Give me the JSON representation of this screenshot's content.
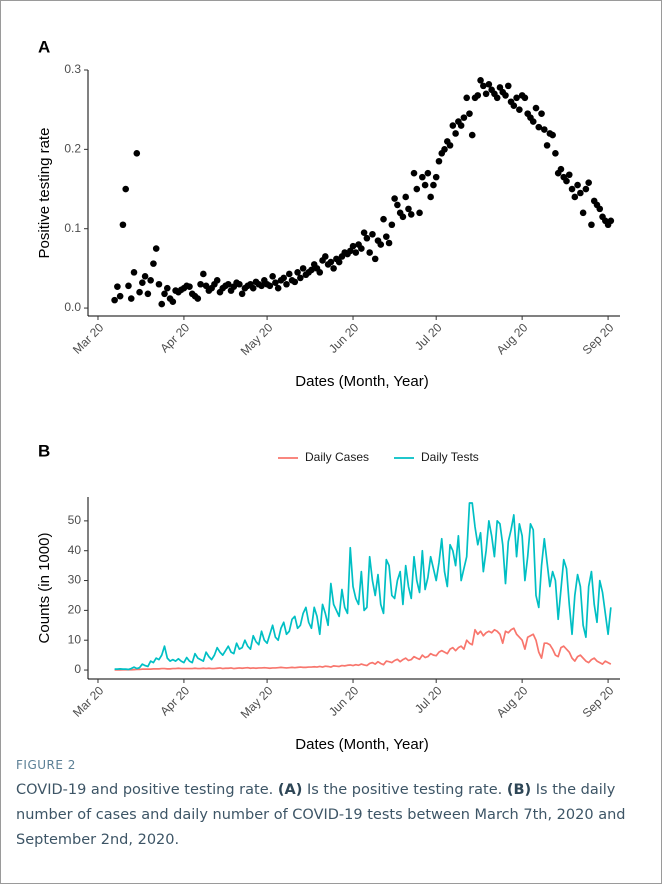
{
  "chart_data": [
    {
      "type": "scatter",
      "panel": "A",
      "y_label": "Positive testing rate",
      "x_label": "Dates (Month, Year)",
      "color": "#000000",
      "x": [
        6,
        7,
        8,
        9,
        10,
        11,
        12,
        13,
        14,
        15,
        16,
        17,
        18,
        19,
        20,
        21,
        22,
        23,
        24,
        25,
        26,
        27,
        28,
        29,
        30,
        31,
        32,
        33,
        34,
        35,
        36,
        37,
        38,
        39,
        40,
        41,
        42,
        43,
        44,
        45,
        46,
        47,
        48,
        49,
        50,
        51,
        52,
        53,
        54,
        55,
        56,
        57,
        58,
        59,
        60,
        61,
        62,
        63,
        64,
        65,
        66,
        67,
        68,
        69,
        70,
        71,
        72,
        73,
        74,
        75,
        76,
        77,
        78,
        79,
        80,
        81,
        82,
        83,
        84,
        85,
        86,
        87,
        88,
        89,
        90,
        91,
        92,
        93,
        94,
        95,
        96,
        97,
        98,
        99,
        100,
        101,
        102,
        103,
        104,
        105,
        106,
        107,
        108,
        109,
        110,
        111,
        112,
        113,
        114,
        115,
        116,
        117,
        118,
        119,
        120,
        121,
        122,
        123,
        124,
        125,
        126,
        127,
        128,
        129,
        130,
        131,
        132,
        133,
        134,
        135,
        136,
        137,
        138,
        139,
        140,
        141,
        142,
        143,
        144,
        145,
        146,
        147,
        148,
        149,
        150,
        151,
        152,
        153,
        154,
        155,
        156,
        157,
        158,
        159,
        160,
        161,
        162,
        163,
        164,
        165,
        166,
        167,
        168,
        169,
        170,
        171,
        172,
        173,
        174,
        175,
        176,
        177,
        178,
        179,
        180,
        181,
        182,
        183,
        184,
        185
      ],
      "values": [
        0.01,
        0.027,
        0.015,
        0.105,
        0.15,
        0.028,
        0.012,
        0.045,
        0.195,
        0.02,
        0.032,
        0.04,
        0.018,
        0.035,
        0.056,
        0.075,
        0.03,
        0.005,
        0.018,
        0.025,
        0.012,
        0.008,
        0.022,
        0.02,
        0.023,
        0.025,
        0.028,
        0.027,
        0.018,
        0.015,
        0.012,
        0.03,
        0.043,
        0.028,
        0.022,
        0.025,
        0.03,
        0.035,
        0.02,
        0.025,
        0.028,
        0.03,
        0.022,
        0.027,
        0.032,
        0.03,
        0.018,
        0.025,
        0.028,
        0.03,
        0.025,
        0.033,
        0.03,
        0.028,
        0.035,
        0.03,
        0.028,
        0.04,
        0.032,
        0.025,
        0.035,
        0.038,
        0.03,
        0.043,
        0.035,
        0.033,
        0.045,
        0.038,
        0.05,
        0.042,
        0.045,
        0.048,
        0.055,
        0.05,
        0.045,
        0.06,
        0.065,
        0.055,
        0.058,
        0.05,
        0.062,
        0.058,
        0.065,
        0.07,
        0.068,
        0.072,
        0.078,
        0.07,
        0.08,
        0.075,
        0.095,
        0.088,
        0.07,
        0.093,
        0.062,
        0.085,
        0.08,
        0.112,
        0.09,
        0.082,
        0.105,
        0.138,
        0.13,
        0.12,
        0.115,
        0.14,
        0.125,
        0.118,
        0.17,
        0.15,
        0.12,
        0.165,
        0.155,
        0.17,
        0.14,
        0.155,
        0.165,
        0.185,
        0.195,
        0.2,
        0.21,
        0.205,
        0.23,
        0.22,
        0.235,
        0.23,
        0.24,
        0.265,
        0.245,
        0.218,
        0.265,
        0.268,
        0.287,
        0.28,
        0.27,
        0.282,
        0.275,
        0.27,
        0.265,
        0.278,
        0.272,
        0.268,
        0.28,
        0.26,
        0.255,
        0.265,
        0.25,
        0.268,
        0.265,
        0.245,
        0.24,
        0.235,
        0.252,
        0.228,
        0.245,
        0.225,
        0.205,
        0.22,
        0.218,
        0.195,
        0.17,
        0.175,
        0.165,
        0.16,
        0.168,
        0.15,
        0.14,
        0.155,
        0.145,
        0.12,
        0.15,
        0.158,
        0.105,
        0.135,
        0.13,
        0.125,
        0.115,
        0.11,
        0.105,
        0.11
      ],
      "xlim": [
        -3.6,
        188.3
      ],
      "xticks": [
        {
          "value": 0,
          "label": "Mar 20"
        },
        {
          "value": 31,
          "label": "Apr 20"
        },
        {
          "value": 61,
          "label": "May 20"
        },
        {
          "value": 92,
          "label": "Jun 20"
        },
        {
          "value": 122,
          "label": "Jul 20"
        },
        {
          "value": 153,
          "label": "Aug 20"
        },
        {
          "value": 184,
          "label": "Sep 20"
        }
      ],
      "ylim": [
        -0.01,
        0.3
      ],
      "yticks": [
        {
          "value": 0,
          "label": "0.0"
        },
        0.1,
        0.2,
        0.3
      ],
      "grid": false
    },
    {
      "type": "line",
      "panel": "B",
      "y_label": "Counts (in 1000)",
      "x_label": "Dates (Month, Year)",
      "legend": "top",
      "x": [
        6,
        7,
        8,
        9,
        10,
        11,
        12,
        13,
        14,
        15,
        16,
        17,
        18,
        19,
        20,
        21,
        22,
        23,
        24,
        25,
        26,
        27,
        28,
        29,
        30,
        31,
        32,
        33,
        34,
        35,
        36,
        37,
        38,
        39,
        40,
        41,
        42,
        43,
        44,
        45,
        46,
        47,
        48,
        49,
        50,
        51,
        52,
        53,
        54,
        55,
        56,
        57,
        58,
        59,
        60,
        61,
        62,
        63,
        64,
        65,
        66,
        67,
        68,
        69,
        70,
        71,
        72,
        73,
        74,
        75,
        76,
        77,
        78,
        79,
        80,
        81,
        82,
        83,
        84,
        85,
        86,
        87,
        88,
        89,
        90,
        91,
        92,
        93,
        94,
        95,
        96,
        97,
        98,
        99,
        100,
        101,
        102,
        103,
        104,
        105,
        106,
        107,
        108,
        109,
        110,
        111,
        112,
        113,
        114,
        115,
        116,
        117,
        118,
        119,
        120,
        121,
        122,
        123,
        124,
        125,
        126,
        127,
        128,
        129,
        130,
        131,
        132,
        133,
        134,
        135,
        136,
        137,
        138,
        139,
        140,
        141,
        142,
        143,
        144,
        145,
        146,
        147,
        148,
        149,
        150,
        151,
        152,
        153,
        154,
        155,
        156,
        157,
        158,
        159,
        160,
        161,
        162,
        163,
        164,
        165,
        166,
        167,
        168,
        169,
        170,
        171,
        172,
        173,
        174,
        175,
        176,
        177,
        178,
        179,
        180,
        181,
        182,
        183,
        184,
        185
      ],
      "series": [
        {
          "name": "Daily Cases",
          "color": "#F8766D",
          "values": [
            0.05,
            0.05,
            0.05,
            0.1,
            0.1,
            0.1,
            0.1,
            0.15,
            0.2,
            0.2,
            0.3,
            0.3,
            0.3,
            0.3,
            0.4,
            0.4,
            0.4,
            0.5,
            0.5,
            0.4,
            0.4,
            0.5,
            0.5,
            0.6,
            0.5,
            0.5,
            0.5,
            0.5,
            0.5,
            0.6,
            0.5,
            0.5,
            0.6,
            0.5,
            0.6,
            0.5,
            0.5,
            0.6,
            0.7,
            0.5,
            0.6,
            0.6,
            0.7,
            0.5,
            0.6,
            0.7,
            0.6,
            0.7,
            0.8,
            0.6,
            0.7,
            0.6,
            0.7,
            0.7,
            0.8,
            0.7,
            0.6,
            0.7,
            0.7,
            0.8,
            0.9,
            0.8,
            0.7,
            0.8,
            0.9,
            0.8,
            0.9,
            1,
            0.9,
            0.9,
            1,
            1,
            1.1,
            1,
            1.2,
            1,
            1.3,
            1.2,
            1,
            1.4,
            1.3,
            1.2,
            1.5,
            1.4,
            1.6,
            1.7,
            1.5,
            1.8,
            1.6,
            2,
            1.7,
            1.5,
            2.2,
            2.5,
            2,
            2.8,
            2.2,
            1.8,
            3,
            2.8,
            2.5,
            3.2,
            3.6,
            2.8,
            3.5,
            4,
            3.2,
            3.5,
            4.5,
            4,
            3.6,
            5,
            4.2,
            4.5,
            5.5,
            5,
            4.8,
            6,
            6.5,
            6,
            5.5,
            7,
            7.5,
            6.5,
            7.5,
            8,
            7,
            10,
            9,
            8.5,
            13.5,
            12,
            13,
            11.5,
            12.5,
            13,
            12.5,
            13.5,
            13,
            12,
            9,
            13,
            12.5,
            13.5,
            14,
            12,
            11,
            10,
            7,
            11,
            11.5,
            12,
            10,
            6,
            4,
            9,
            9,
            8.5,
            7,
            5,
            4.5,
            7.5,
            8,
            7,
            6,
            4,
            3,
            4.5,
            5,
            4,
            3,
            2.5,
            3.5,
            4,
            3,
            2.5,
            2,
            3,
            2.5,
            2
          ]
        },
        {
          "name": "Daily Tests",
          "color": "#00BFC4",
          "values": [
            0.3,
            0.3,
            0.4,
            0.3,
            0.3,
            0.2,
            0.5,
            1,
            0.5,
            0.8,
            2,
            1.5,
            1.2,
            3,
            2.5,
            4,
            3.5,
            5,
            8,
            4,
            3,
            3.5,
            3,
            3.8,
            3,
            2.5,
            4.2,
            3,
            2.5,
            5.5,
            4,
            3.5,
            3,
            6,
            4.5,
            3.5,
            5,
            7.5,
            6,
            5,
            6.5,
            8,
            6,
            5.5,
            9,
            7,
            7.5,
            10,
            8,
            7,
            11.5,
            9.5,
            8.5,
            13,
            10,
            9,
            12,
            15,
            11,
            10,
            14,
            16,
            12,
            13,
            17,
            18,
            14,
            15,
            19,
            21,
            16,
            14,
            21,
            18,
            12,
            22,
            19,
            15,
            29,
            22,
            20,
            18,
            27,
            21,
            19,
            41,
            28,
            24,
            22,
            33,
            20,
            21,
            38,
            30,
            25,
            32,
            22,
            19,
            37,
            35,
            25,
            24,
            30,
            33,
            22,
            35,
            28,
            24,
            38,
            30,
            26,
            40,
            27,
            31,
            38,
            34,
            30,
            36,
            44,
            33,
            28,
            42,
            40,
            35,
            45,
            30,
            34,
            38,
            56,
            56,
            48,
            42,
            46,
            33,
            40,
            50,
            45,
            38,
            50,
            49,
            42,
            29,
            43,
            47,
            52,
            38,
            49,
            45,
            30,
            38,
            49,
            47,
            25,
            21,
            35,
            44,
            36,
            28,
            33,
            30,
            17,
            27,
            37,
            34,
            22,
            12,
            25,
            32,
            28,
            15,
            11,
            28,
            33,
            22,
            16,
            30,
            26,
            19,
            12,
            21
          ]
        }
      ],
      "xlim": [
        -3.6,
        188.3
      ],
      "xticks": [
        {
          "value": 0,
          "label": "Mar 20"
        },
        {
          "value": 31,
          "label": "Apr 20"
        },
        {
          "value": 61,
          "label": "May 20"
        },
        {
          "value": 92,
          "label": "Jun 20"
        },
        {
          "value": 122,
          "label": "Jul 20"
        },
        {
          "value": 153,
          "label": "Aug 20"
        },
        {
          "value": 184,
          "label": "Sep 20"
        }
      ],
      "ylim": [
        -3,
        58
      ],
      "yticks": [
        0,
        10,
        20,
        30,
        40,
        50
      ],
      "grid": false
    }
  ],
  "caption": {
    "label": "FIGURE 2",
    "parts": [
      "COVID-19 and positive testing rate. ",
      "(A)",
      " Is the positive testing rate. ",
      "(B)",
      " Is the daily number of cases and daily number of COVID-19 tests between March 7th, 2020 and September 2nd, 2020."
    ]
  }
}
